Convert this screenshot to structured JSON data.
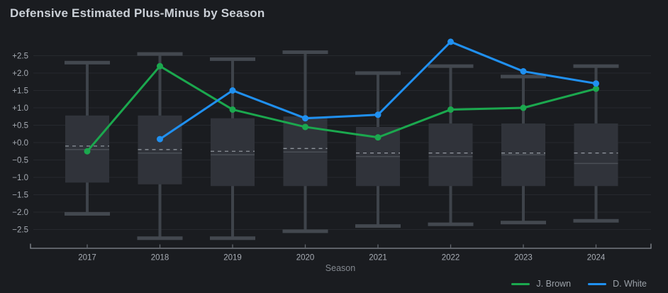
{
  "header": {
    "title": "Defensive Estimated Plus-Minus by Season"
  },
  "chart_data": {
    "type": "line",
    "subtype": "lines-over-boxplots",
    "title": "Defensive Estimated Plus-Minus by Season",
    "xlabel": "Season",
    "ylabel": "",
    "categories": [
      "2017",
      "2018",
      "2019",
      "2020",
      "2021",
      "2022",
      "2023",
      "2024"
    ],
    "y_ticks": [
      "+2.5",
      "+2.0",
      "+1.5",
      "+1.0",
      "+0.5",
      "+0.0",
      "−0.5",
      "−1.0",
      "−1.5",
      "−2.0",
      "−2.5"
    ],
    "ylim": [
      -2.9,
      3.0
    ],
    "grid": "horizontal",
    "legend_position": "bottom-right",
    "series": [
      {
        "name": "J. Brown",
        "color": "#1ba84e",
        "values": [
          -0.25,
          2.2,
          0.95,
          0.45,
          0.15,
          0.95,
          1.0,
          1.55
        ]
      },
      {
        "name": "D. White",
        "color": "#2090f0",
        "values": [
          null,
          0.1,
          1.5,
          0.7,
          0.8,
          2.9,
          2.05,
          1.7
        ]
      }
    ],
    "boxplots": [
      {
        "category": "2017",
        "whisker_low": -2.05,
        "q1": -1.15,
        "median": -0.2,
        "mean": -0.1,
        "q3": 0.78,
        "whisker_high": 2.3
      },
      {
        "category": "2018",
        "whisker_low": -2.75,
        "q1": -1.2,
        "median": -0.3,
        "mean": -0.2,
        "q3": 0.78,
        "whisker_high": 2.55
      },
      {
        "category": "2019",
        "whisker_low": -2.75,
        "q1": -1.25,
        "median": -0.35,
        "mean": -0.25,
        "q3": 0.7,
        "whisker_high": 2.4
      },
      {
        "category": "2020",
        "whisker_low": -2.55,
        "q1": -1.25,
        "median": -0.27,
        "mean": -0.17,
        "q3": 0.75,
        "whisker_high": 2.6
      },
      {
        "category": "2021",
        "whisker_low": -2.4,
        "q1": -1.25,
        "median": -0.4,
        "mean": -0.3,
        "q3": 0.45,
        "whisker_high": 2.0
      },
      {
        "category": "2022",
        "whisker_low": -2.35,
        "q1": -1.25,
        "median": -0.4,
        "mean": -0.3,
        "q3": 0.55,
        "whisker_high": 2.2
      },
      {
        "category": "2023",
        "whisker_low": -2.3,
        "q1": -1.25,
        "median": -0.35,
        "mean": -0.3,
        "q3": 0.55,
        "whisker_high": 1.9
      },
      {
        "category": "2024",
        "whisker_low": -2.25,
        "q1": -1.25,
        "median": -0.6,
        "mean": -0.3,
        "q3": 0.55,
        "whisker_high": 2.2
      }
    ],
    "colors": {
      "background": "#1a1c20",
      "title": "#cbd0d7",
      "grid": "#26292e",
      "box_fill": "#30333a",
      "whisker": "#3e434a",
      "whisker_cap": "#43484f",
      "median_line": "#4a4f56",
      "mean_dash": "#8e949c",
      "axis_line": "#888d94",
      "axis_tick": "#62666d",
      "tick_label": "#a7acb4",
      "axis_label": "#83888f",
      "legend_label": "#9ba1a8"
    }
  }
}
